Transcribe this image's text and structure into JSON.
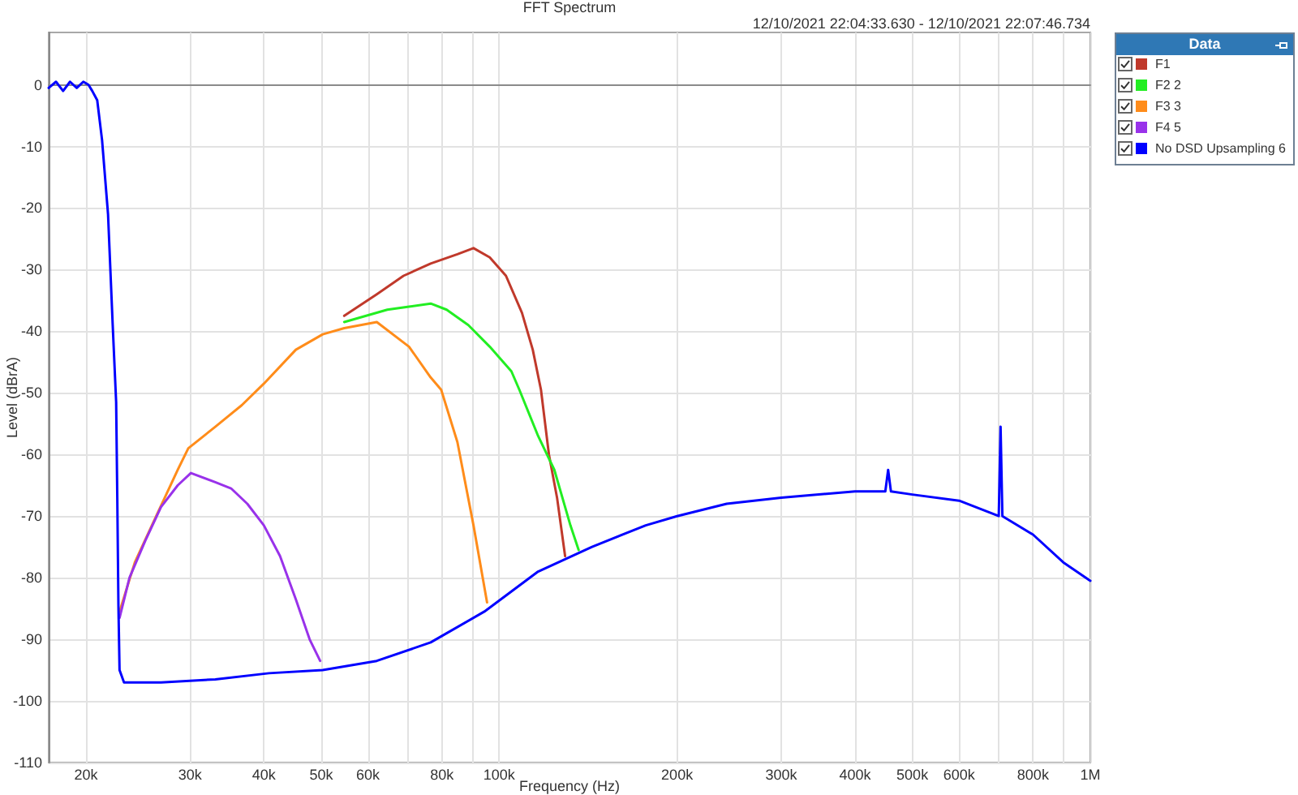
{
  "chart_data": {
    "type": "line",
    "title": "FFT Spectrum",
    "subtitle": "12/10/2021 22:04:33.630 - 12/10/2021 22:07:46.734",
    "xlabel": "Frequency (Hz)",
    "ylabel": "Level (dBrA)",
    "legend_title": "Data",
    "log": "x",
    "grid": true,
    "legend": "top right",
    "xlim": [
      17300,
      1000000
    ],
    "ylim": [
      -110,
      8.5
    ],
    "xticks": [
      {
        "value": 20000,
        "label": "20k"
      },
      {
        "value": 30000,
        "label": "30k"
      },
      {
        "value": 40000,
        "label": "40k"
      },
      {
        "value": 50000,
        "label": "50k"
      },
      {
        "value": 60000,
        "label": "60k"
      },
      {
        "value": 70000,
        "label": null
      },
      {
        "value": 80000,
        "label": "80k"
      },
      {
        "value": 90000,
        "label": null
      },
      {
        "value": 100000,
        "label": "100k"
      },
      {
        "value": 200000,
        "label": "200k"
      },
      {
        "value": 300000,
        "label": "300k"
      },
      {
        "value": 400000,
        "label": "400k"
      },
      {
        "value": 500000,
        "label": "500k"
      },
      {
        "value": 600000,
        "label": "600k"
      },
      {
        "value": 700000,
        "label": null
      },
      {
        "value": 800000,
        "label": "800k"
      },
      {
        "value": 900000,
        "label": null
      },
      {
        "value": 1000000,
        "label": "1M"
      }
    ],
    "yticks": [
      0,
      -10,
      -20,
      -30,
      -40,
      -50,
      -60,
      -70,
      -80,
      -90,
      -100,
      -110
    ],
    "series": [
      {
        "name": "F1",
        "color": "#c0392b",
        "x": [
          54700,
          62100,
          68900,
          76600,
          85000,
          90500,
          96400,
          102700,
          109300,
          114000,
          117700,
          121400,
          125300,
          129300
        ],
        "values": [
          -37.5,
          -34,
          -31,
          -29,
          -27.5,
          -26.5,
          -28,
          -31,
          -37,
          -43,
          -49.5,
          -60,
          -67,
          -76.5
        ]
      },
      {
        "name": "F2 2",
        "color": "#22ee22",
        "x": [
          54700,
          64700,
          70400,
          76600,
          81500,
          88700,
          96400,
          104900,
          108200,
          116400,
          124000,
          132000,
          136300
        ],
        "values": [
          -38.5,
          -36.5,
          -36,
          -35.5,
          -36.5,
          -39,
          -42.5,
          -46.5,
          -49.5,
          -57,
          -62.5,
          -71.5,
          -75.5
        ]
      },
      {
        "name": "F3 3",
        "color": "#ff8c1a",
        "x": [
          22800,
          24200,
          26300,
          28600,
          29800,
          33100,
          36700,
          40000,
          45300,
          50300,
          54700,
          62100,
          70400,
          76600,
          79800,
          85000,
          90500,
          95400
        ],
        "values": [
          -85.5,
          -77.5,
          -70,
          -62.5,
          -59,
          -55.5,
          -52,
          -48.5,
          -43,
          -40.5,
          -39.5,
          -38.5,
          -42.5,
          -47.5,
          -49.5,
          -58,
          -71.5,
          -84
        ]
      },
      {
        "name": "F4 5",
        "color": "#9932ea",
        "x": [
          22800,
          23700,
          25200,
          26800,
          28600,
          30100,
          33100,
          35200,
          37500,
          40000,
          42600,
          45300,
          47800,
          49800
        ],
        "values": [
          -86.5,
          -80,
          -74,
          -68.5,
          -65,
          -63,
          -64.5,
          -65.5,
          -68,
          -71.5,
          -76.5,
          -83.5,
          -90,
          -93.5
        ]
      },
      {
        "name": "No DSD Upsampling 6",
        "color": "#0000ff",
        "x": [
          17300,
          17800,
          18300,
          18800,
          19300,
          19800,
          20200,
          20500,
          20900,
          21300,
          21800,
          22200,
          22500,
          22600,
          22700,
          22800,
          23200,
          26800,
          33100,
          40800,
          50300,
          62100,
          76600,
          94400,
          116400,
          143600,
          177000,
          200000,
          242600,
          300000,
          400000,
          450000,
          455000,
          460000,
          500000,
          600000,
          700000,
          705000,
          710000,
          800000,
          900000,
          1000000
        ],
        "values": [
          -0.5,
          0.5,
          -1,
          0.5,
          -0.5,
          0.5,
          0,
          -1,
          -2.5,
          -9,
          -21,
          -39,
          -51.5,
          -67,
          -84.5,
          -95,
          -97,
          -97,
          -96.5,
          -95.5,
          -95,
          -93.5,
          -90.5,
          -85.5,
          -79,
          -75,
          -71.5,
          -70,
          -68,
          -67,
          -66,
          -66,
          -62.5,
          -66,
          -66.5,
          -67.5,
          -70,
          -55.5,
          -70,
          -73,
          -77.5,
          -80.5
        ]
      }
    ]
  }
}
